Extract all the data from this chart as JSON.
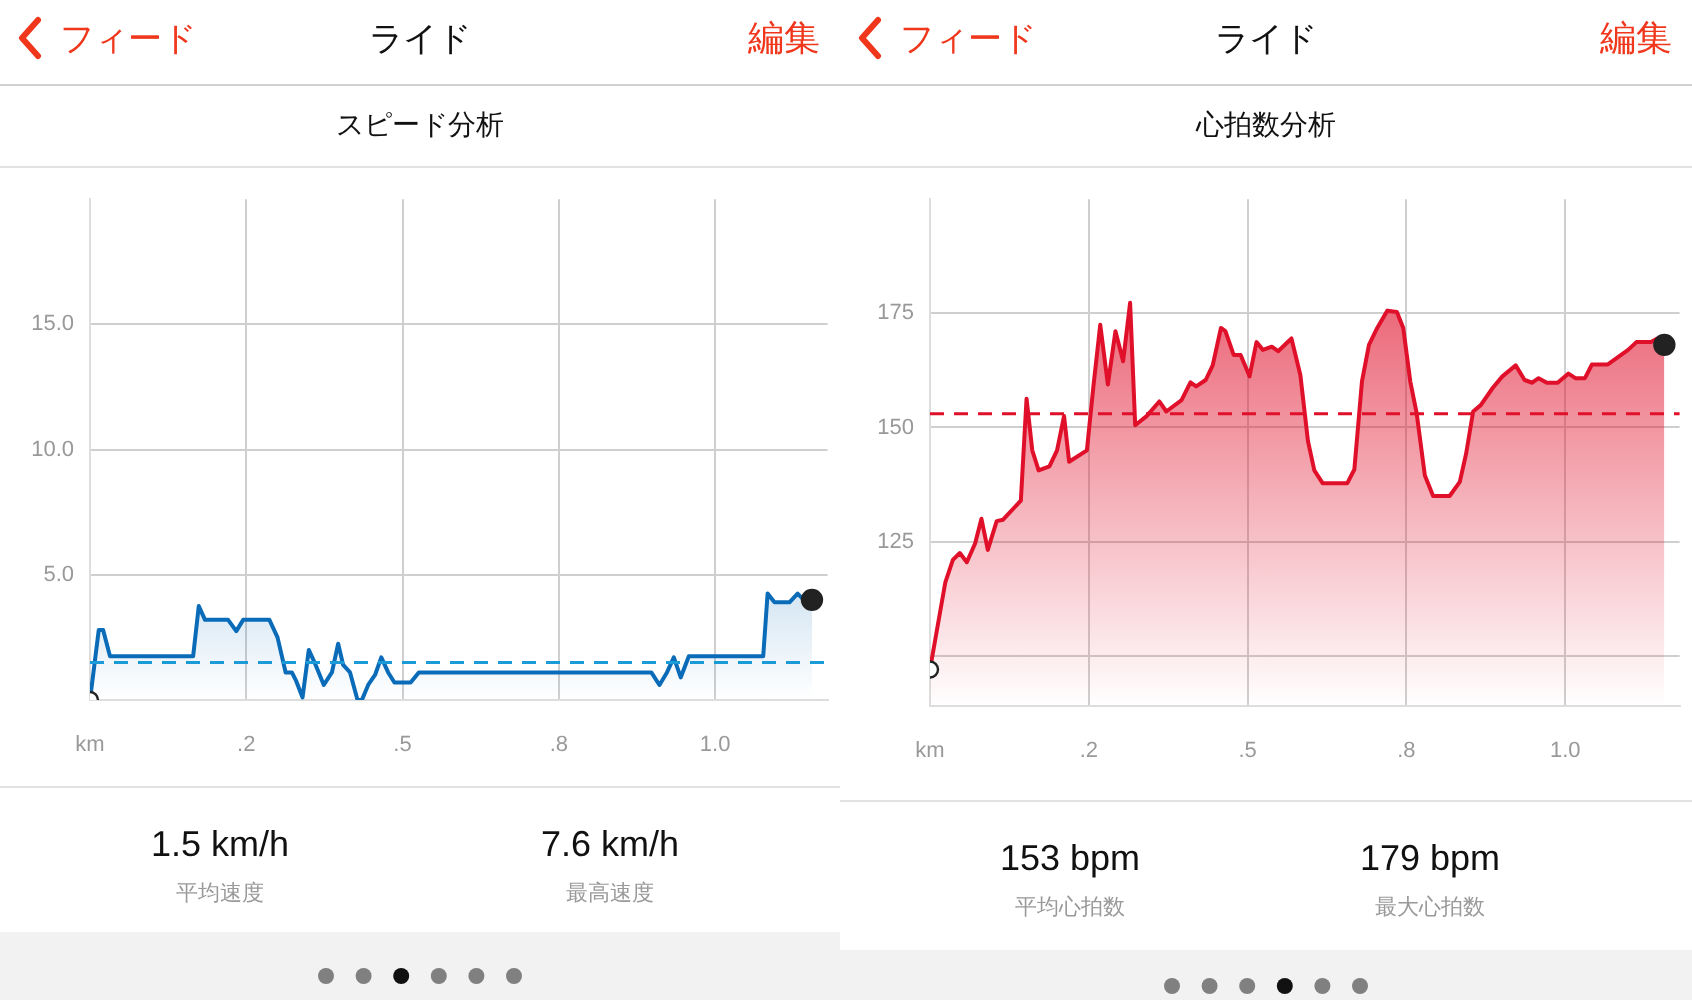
{
  "chart_data": [
    {
      "type": "area",
      "title": "スピード分析",
      "annotations": [
        "フィード",
        "ライド",
        "編集",
        "1.5 km/h",
        "平均速度",
        "7.6 km/h",
        "最高速度"
      ],
      "x": [
        0,
        0.014,
        0.021,
        0.032,
        0.165,
        0.174,
        0.184,
        0.221,
        0.234,
        0.245,
        0.287,
        0.3,
        0.313,
        0.323,
        0.33,
        0.34,
        0.35,
        0.361,
        0.374,
        0.387,
        0.397,
        0.405,
        0.416,
        0.428,
        0.435,
        0.445,
        0.456,
        0.466,
        0.477,
        0.487,
        0.513,
        0.526,
        0.898,
        0.911,
        0.923,
        0.934,
        0.945,
        0.958,
        1.077,
        1.084,
        1.095,
        1.119,
        1.132,
        1.142,
        1.155
      ],
      "series": [
        {
          "color": "#0a6cb8",
          "values": [
            0,
            2.8,
            2.8,
            1.75,
            1.75,
            3.75,
            3.2,
            3.2,
            2.75,
            3.2,
            3.2,
            2.5,
            1.1,
            1.1,
            0.75,
            0.1,
            2.0,
            1.4,
            0.6,
            1.1,
            2.25,
            1.4,
            1.1,
            0,
            0,
            0.6,
            1.0,
            1.7,
            1.1,
            0.7,
            0.7,
            1.1,
            1.1,
            0.6,
            1.1,
            1.7,
            0.9,
            1.75,
            1.75,
            4.25,
            3.9,
            3.9,
            4.25,
            4.0,
            4.0
          ]
        }
      ],
      "xlim": [
        0,
        1.18
      ],
      "xticks": [
        {
          "value": 0,
          "label": "km"
        },
        {
          "value": 0.25,
          "label": ".2"
        },
        {
          "value": 0.5,
          "label": ".5"
        },
        {
          "value": 0.75,
          "label": ".8"
        },
        {
          "value": 1,
          "label": "1.0"
        }
      ],
      "ylim": [
        0,
        20
      ],
      "yticks": [
        {
          "value": 0,
          "label": null
        },
        {
          "value": 5,
          "label": "5.0"
        },
        {
          "value": 10,
          "label": "10.0"
        },
        {
          "value": 15,
          "label": "15.0"
        }
      ],
      "ref_lines": [
        {
          "axis": "y",
          "value": 1.5,
          "color": "#1a9ad6",
          "line_style": "dashed"
        }
      ],
      "grid": true,
      "legend": false
    },
    {
      "type": "area",
      "title": "心拍数分析",
      "annotations": [
        "フィード",
        "ライド",
        "編集",
        "153 bpm",
        "平均心拍数",
        "179 bpm",
        "最大心拍数"
      ],
      "x": [
        0,
        0.024,
        0.036,
        0.047,
        0.058,
        0.071,
        0.081,
        0.091,
        0.105,
        0.115,
        0.143,
        0.152,
        0.161,
        0.171,
        0.188,
        0.2,
        0.211,
        0.219,
        0.247,
        0.257,
        0.268,
        0.28,
        0.292,
        0.304,
        0.315,
        0.323,
        0.341,
        0.361,
        0.372,
        0.396,
        0.41,
        0.419,
        0.434,
        0.445,
        0.458,
        0.465,
        0.478,
        0.489,
        0.503,
        0.514,
        0.524,
        0.538,
        0.548,
        0.569,
        0.583,
        0.595,
        0.605,
        0.618,
        0.657,
        0.668,
        0.68,
        0.691,
        0.704,
        0.72,
        0.735,
        0.745,
        0.756,
        0.766,
        0.779,
        0.792,
        0.818,
        0.834,
        0.844,
        0.855,
        0.867,
        0.886,
        0.901,
        0.922,
        0.936,
        0.948,
        0.958,
        0.971,
        0.988,
        1.005,
        1.016,
        1.031,
        1.042,
        1.067,
        1.099,
        1.112,
        1.135,
        1.145,
        1.156
      ],
      "series": [
        {
          "color": "#e0102a",
          "values": [
            97,
            116,
            121,
            122.5,
            120.5,
            124.6,
            130,
            123.2,
            129.5,
            129.8,
            134,
            156.3,
            145,
            140.6,
            141.5,
            145,
            152.5,
            142.5,
            145,
            158.7,
            172.5,
            159.4,
            171.1,
            164.5,
            177.3,
            150.5,
            152.5,
            155.7,
            153.5,
            156,
            159.9,
            159,
            160.4,
            163.6,
            171.8,
            171.1,
            165.9,
            165.9,
            161.2,
            168.7,
            167,
            167.7,
            166.7,
            169.5,
            161.5,
            147,
            140.6,
            137.8,
            137.8,
            140.8,
            160.1,
            168.1,
            171.8,
            175.6,
            175.3,
            171.8,
            160.1,
            153.2,
            139.5,
            135,
            135,
            138.1,
            144.3,
            153.5,
            154.9,
            158.7,
            161.2,
            163.6,
            160.4,
            159.8,
            160.8,
            159.8,
            159.8,
            161.8,
            160.8,
            160.8,
            163.8,
            163.8,
            167,
            168.7,
            168.7,
            169.5,
            168.1
          ]
        }
      ],
      "xlim": [
        0,
        1.18
      ],
      "xticks": [
        {
          "value": 0,
          "label": "km"
        },
        {
          "value": 0.25,
          "label": ".2"
        },
        {
          "value": 0.5,
          "label": ".5"
        },
        {
          "value": 0.75,
          "label": ".8"
        },
        {
          "value": 1,
          "label": "1.0"
        }
      ],
      "ylim": [
        89,
        200
      ],
      "yticks": [
        {
          "value": 100,
          "label": null
        },
        125,
        150,
        175
      ],
      "ref_lines": [
        {
          "axis": "y",
          "value": 153,
          "color": "#e0102a",
          "line_style": "dashed"
        }
      ],
      "grid": true,
      "legend": false
    }
  ]
}
